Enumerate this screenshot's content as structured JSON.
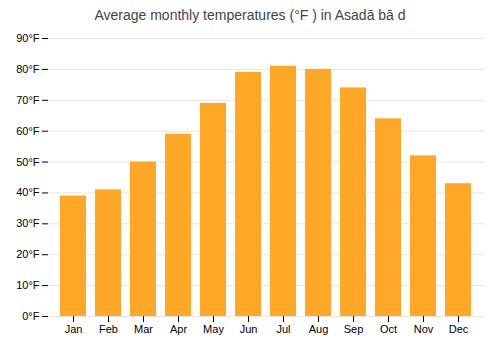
{
  "chart_data": {
    "type": "bar",
    "title": "Average monthly temperatures (°F ) in Asadā bā d",
    "categories": [
      "Jan",
      "Feb",
      "Mar",
      "Apr",
      "May",
      "Jun",
      "Jul",
      "Aug",
      "Sep",
      "Oct",
      "Nov",
      "Dec"
    ],
    "values": [
      39,
      41,
      50,
      59,
      69,
      79,
      81,
      80,
      74,
      64,
      52,
      43
    ],
    "color": "#FFA726",
    "ylim": [
      0,
      90
    ],
    "yticks": [
      {
        "value": 0,
        "label": "0°F"
      },
      {
        "value": 10,
        "label": "10°F"
      },
      {
        "value": 20,
        "label": "20°F"
      },
      {
        "value": 30,
        "label": "30°F"
      },
      {
        "value": 40,
        "label": "40°F"
      },
      {
        "value": 50,
        "label": "50°F"
      },
      {
        "value": 60,
        "label": "60°F"
      },
      {
        "value": 70,
        "label": "70°F"
      },
      {
        "value": 80,
        "label": "80°F"
      },
      {
        "value": 90,
        "label": "90°F"
      }
    ],
    "grid": true
  }
}
